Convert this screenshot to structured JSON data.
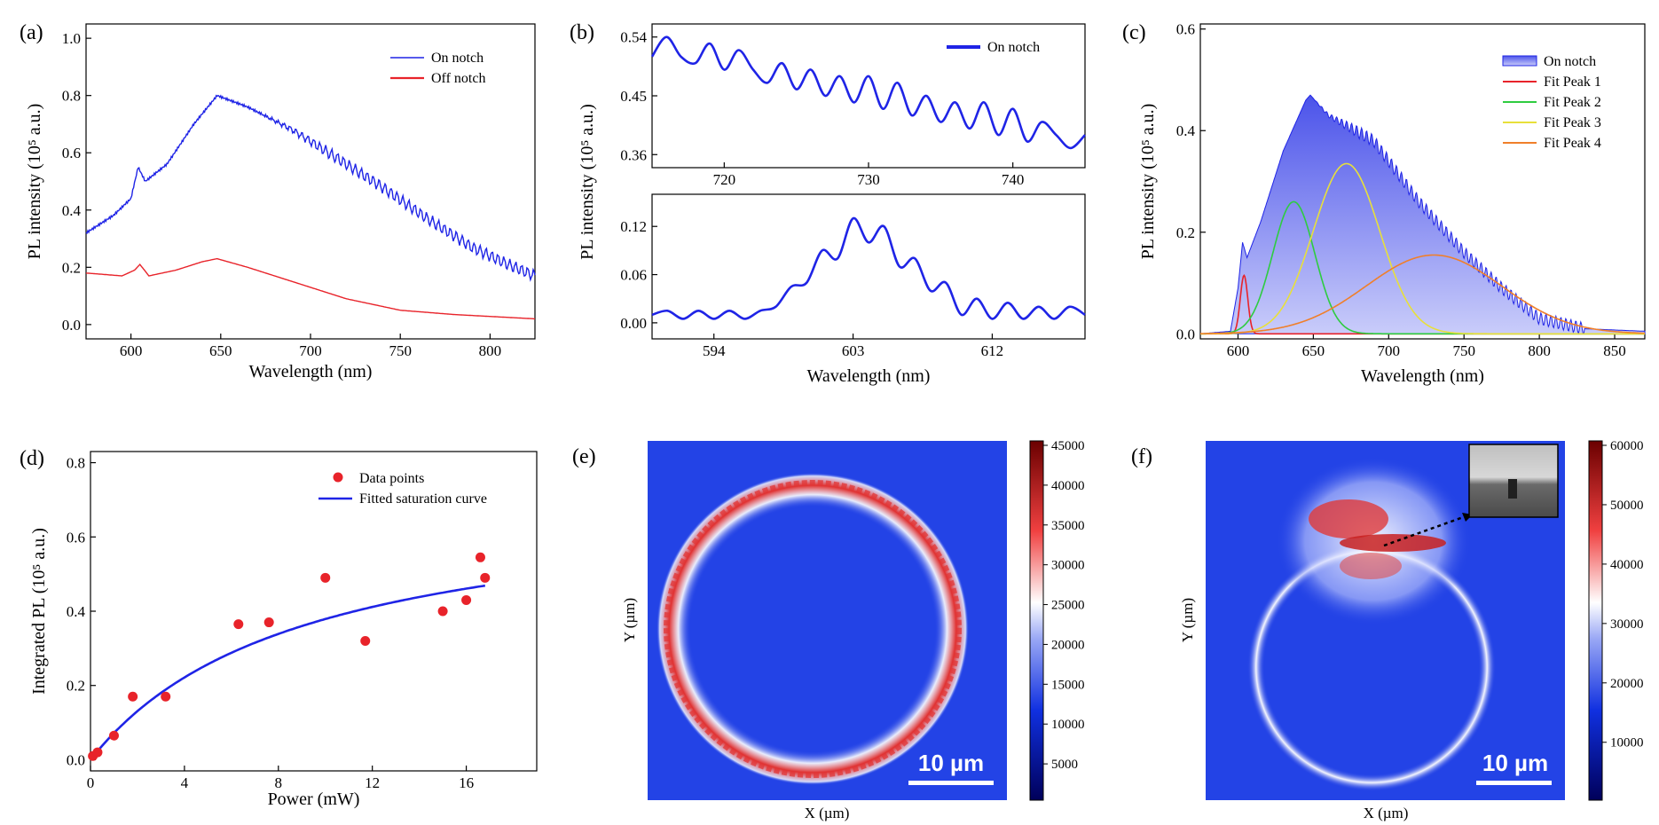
{
  "colors": {
    "blue": "#1f24e6",
    "red": "#e8232a",
    "green": "#2ecc40",
    "yellow": "#e8e03a",
    "orange": "#f07f2a",
    "fill": "#6b72ee",
    "map_bg": "#2140e6",
    "map_ring": "#d83030"
  },
  "chart_data": [
    {
      "panel": "(a)",
      "type": "line",
      "xlabel": "Wavelength (nm)",
      "ylabel": "PL intensity (10⁵ a.u.)",
      "xlim": [
        575,
        825
      ],
      "ylim": [
        -0.05,
        1.05
      ],
      "xticks": [
        600,
        650,
        700,
        750,
        800
      ],
      "yticks": [
        0.0,
        0.2,
        0.4,
        0.6,
        0.8,
        1.0
      ],
      "series": [
        {
          "name": "On notch",
          "color": "#1f24e6",
          "x": [
            575,
            590,
            600,
            604,
            608,
            620,
            635,
            648,
            665,
            690,
            715,
            740,
            765,
            790,
            810,
            825
          ],
          "y": [
            0.32,
            0.38,
            0.44,
            0.55,
            0.5,
            0.56,
            0.7,
            0.8,
            0.76,
            0.68,
            0.58,
            0.48,
            0.37,
            0.27,
            0.21,
            0.17
          ]
        },
        {
          "name": "Off notch",
          "color": "#e8232a",
          "x": [
            575,
            595,
            602,
            605,
            610,
            625,
            640,
            648,
            665,
            690,
            720,
            750,
            780,
            810,
            825
          ],
          "y": [
            0.18,
            0.17,
            0.19,
            0.21,
            0.17,
            0.19,
            0.22,
            0.23,
            0.2,
            0.15,
            0.09,
            0.05,
            0.035,
            0.025,
            0.02
          ]
        }
      ]
    },
    {
      "panel": "(b)",
      "type": "line",
      "ylabel": "PL intensity (10⁵ a.u.)",
      "legend": "On notch",
      "subplots": [
        {
          "xlim": [
            715,
            745
          ],
          "ylim": [
            0.34,
            0.56
          ],
          "xticks": [
            720,
            730,
            740
          ],
          "yticks": [
            0.36,
            0.45,
            0.54
          ],
          "x": [
            715,
            716,
            717,
            718,
            719,
            720,
            721,
            722,
            723,
            724,
            725,
            726,
            727,
            728,
            729,
            730,
            731,
            732,
            733,
            734,
            735,
            736,
            737,
            738,
            739,
            740,
            741,
            742,
            743,
            744,
            745
          ],
          "y": [
            0.51,
            0.54,
            0.51,
            0.5,
            0.53,
            0.49,
            0.52,
            0.49,
            0.47,
            0.5,
            0.46,
            0.49,
            0.45,
            0.48,
            0.44,
            0.48,
            0.43,
            0.47,
            0.42,
            0.45,
            0.41,
            0.44,
            0.4,
            0.44,
            0.39,
            0.43,
            0.38,
            0.41,
            0.39,
            0.37,
            0.39
          ]
        },
        {
          "xlabel": "Wavelength (nm)",
          "xlim": [
            590,
            618
          ],
          "ylim": [
            -0.02,
            0.16
          ],
          "xticks": [
            594,
            603,
            612
          ],
          "yticks": [
            0.0,
            0.06,
            0.12
          ],
          "x": [
            590,
            591,
            592,
            593,
            594,
            595,
            596,
            597,
            598,
            599,
            600,
            601,
            602,
            603,
            604,
            605,
            606,
            607,
            608,
            609,
            610,
            611,
            612,
            613,
            614,
            615,
            616,
            617,
            618
          ],
          "y": [
            0.01,
            0.015,
            0.005,
            0.015,
            0.005,
            0.015,
            0.005,
            0.015,
            0.02,
            0.045,
            0.05,
            0.09,
            0.08,
            0.13,
            0.1,
            0.12,
            0.07,
            0.08,
            0.04,
            0.05,
            0.01,
            0.03,
            0.005,
            0.025,
            0.005,
            0.02,
            0.005,
            0.02,
            0.01
          ]
        }
      ]
    },
    {
      "panel": "(c)",
      "type": "area",
      "xlabel": "Wavelength (nm)",
      "ylabel": "PL intensity (10⁵ a.u.)",
      "xlim": [
        575,
        870
      ],
      "ylim": [
        -0.01,
        0.61
      ],
      "xticks": [
        600,
        650,
        700,
        750,
        800,
        850
      ],
      "yticks": [
        0.0,
        0.2,
        0.4,
        0.6
      ],
      "series": [
        {
          "name": "On notch",
          "color": "#1f24e6",
          "x": [
            575,
            595,
            600,
            603,
            606,
            615,
            630,
            645,
            648,
            660,
            690,
            720,
            750,
            775,
            800,
            830,
            870
          ],
          "y": [
            0.0,
            0.005,
            0.09,
            0.18,
            0.15,
            0.22,
            0.36,
            0.46,
            0.47,
            0.43,
            0.38,
            0.26,
            0.16,
            0.09,
            0.03,
            0.01,
            0.005
          ]
        },
        {
          "name": "Fit Peak 1",
          "color": "#e8232a",
          "center": 604,
          "sigma": 2.5,
          "amp": 0.115
        },
        {
          "name": "Fit Peak 2",
          "color": "#2ecc40",
          "center": 637,
          "sigma": 14,
          "amp": 0.26
        },
        {
          "name": "Fit Peak 3",
          "color": "#e8e03a",
          "center": 672,
          "sigma": 22,
          "amp": 0.335
        },
        {
          "name": "Fit Peak 4",
          "color": "#f07f2a",
          "center": 730,
          "sigma": 45,
          "amp": 0.155
        }
      ]
    },
    {
      "panel": "(d)",
      "type": "scatter",
      "xlabel": "Power (mW)",
      "ylabel": "Integrated PL (10⁵ a.u.)",
      "xlim": [
        0,
        19
      ],
      "ylim": [
        -0.03,
        0.83
      ],
      "xticks": [
        0,
        4,
        8,
        12,
        16
      ],
      "yticks": [
        0.0,
        0.2,
        0.4,
        0.6,
        0.8
      ],
      "series": [
        {
          "name": "Data points",
          "color": "#e8232a",
          "x": [
            0.1,
            0.3,
            1.0,
            1.8,
            3.2,
            6.3,
            7.6,
            10.0,
            11.7,
            15.0,
            16.0,
            16.6,
            16.8
          ],
          "y": [
            0.01,
            0.02,
            0.065,
            0.17,
            0.17,
            0.365,
            0.37,
            0.49,
            0.32,
            0.4,
            0.43,
            0.545,
            0.49
          ]
        },
        {
          "name": "Fitted saturation curve",
          "color": "#1f24e6",
          "model": "Imax*P/(P+Psat)",
          "Imax": 0.72,
          "Psat": 9.0,
          "xrange": [
            0,
            16.8
          ]
        }
      ]
    },
    {
      "panel": "(e)",
      "type": "heatmap",
      "xlabel": "X (µm)",
      "ylabel": "Y (µm)",
      "scalebar": "10 µm",
      "colorbar_ticks": [
        5000,
        10000,
        15000,
        20000,
        25000,
        30000,
        35000,
        40000,
        45000
      ]
    },
    {
      "panel": "(f)",
      "type": "heatmap",
      "xlabel": "X (µm)",
      "ylabel": "Y (µm)",
      "scalebar": "10 µm",
      "colorbar_ticks": [
        10000,
        20000,
        30000,
        40000,
        50000,
        60000
      ]
    }
  ]
}
